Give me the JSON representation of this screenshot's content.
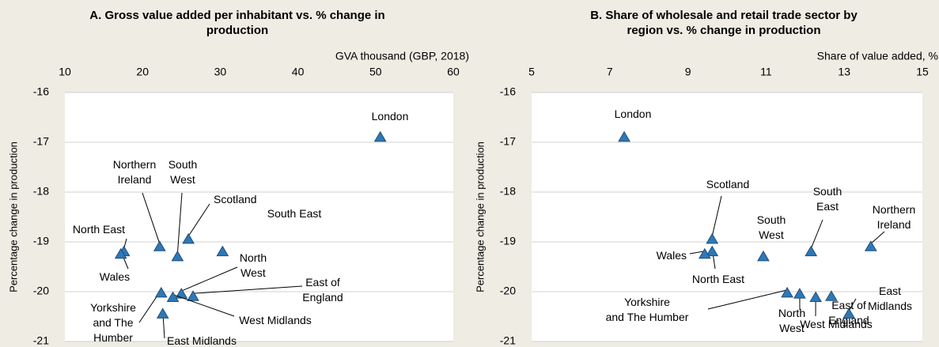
{
  "chart_data": [
    {
      "type": "scatter",
      "title": "A. Gross value added per inhabitant vs. % change in production",
      "xlabel": "GVA thousand (GBP, 2018)",
      "ylabel": "Percentage change in production",
      "xlim": [
        10,
        60
      ],
      "xticks": [
        10,
        20,
        30,
        40,
        50,
        60
      ],
      "ylim": [
        -21,
        -16
      ],
      "yticks": [
        -16,
        -17,
        -18,
        -19,
        -20,
        -21
      ],
      "grid": true,
      "series": [
        {
          "color": "#2e78b7",
          "labels": [
            "London",
            "Northern Ireland",
            "South West",
            "Scotland",
            "South East",
            "North East",
            "Wales",
            "North West",
            "East of England",
            "West Midlands",
            "Yorkshire and The Humber",
            "East Midlands"
          ],
          "x": [
            50.6,
            22.2,
            24.5,
            25.9,
            30.3,
            17.6,
            17.2,
            25.0,
            26.5,
            23.9,
            22.4,
            22.6
          ],
          "values": [
            -16.9,
            -19.1,
            -19.3,
            -18.95,
            -19.2,
            -19.2,
            -19.25,
            -20.05,
            -20.1,
            -20.12,
            -20.03,
            -20.45
          ]
        }
      ]
    },
    {
      "type": "scatter",
      "title": "B. Share of wholesale and retail trade sector by region vs. % change in production",
      "xlabel": "Share of value added, %",
      "ylabel": "Percentage change in production",
      "xlim": [
        5,
        15
      ],
      "xticks": [
        5,
        7,
        9,
        11,
        13,
        15
      ],
      "ylim": [
        -21,
        -16
      ],
      "yticks": [
        -16,
        -17,
        -18,
        -19,
        -20,
        -21
      ],
      "grid": true,
      "series": [
        {
          "color": "#2e78b7",
          "labels": [
            "London",
            "Northern Ireland",
            "South West",
            "Scotland",
            "South East",
            "North East",
            "Wales",
            "North West",
            "East of England",
            "West Midlands",
            "Yorkshire and The Humber",
            "East Midlands"
          ],
          "x": [
            7.37,
            13.68,
            10.93,
            9.62,
            12.15,
            9.62,
            9.43,
            11.86,
            12.67,
            12.27,
            11.54,
            13.12
          ],
          "values": [
            -16.9,
            -19.1,
            -19.3,
            -18.95,
            -19.2,
            -19.2,
            -19.25,
            -20.05,
            -20.1,
            -20.12,
            -20.03,
            -20.45
          ]
        }
      ]
    }
  ]
}
